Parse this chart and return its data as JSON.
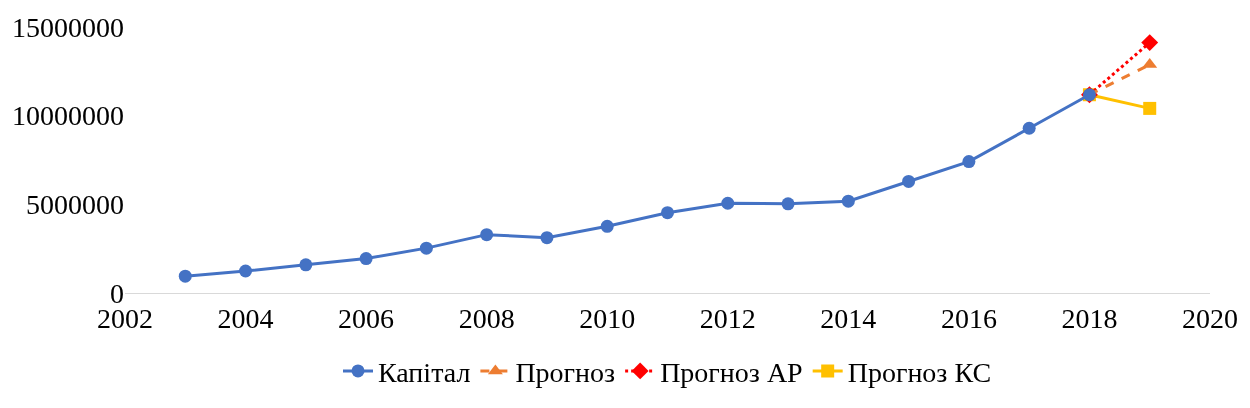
{
  "chart_data": {
    "type": "line",
    "xlim": [
      2002,
      2020
    ],
    "xticks": [
      2002,
      2004,
      2006,
      2008,
      2010,
      2012,
      2014,
      2016,
      2018,
      2020
    ],
    "ylim": [
      0,
      15000000
    ],
    "yticks": [
      0,
      5000000,
      10000000,
      15000000
    ],
    "grid": false,
    "legend": "bottom",
    "series": [
      {
        "name": "Капітал",
        "color": "#4472c4",
        "marker": "circle",
        "line_style": "solid",
        "x": [
          2003,
          2004,
          2005,
          2006,
          2007,
          2008,
          2009,
          2010,
          2011,
          2012,
          2013,
          2014,
          2015,
          2016,
          2017,
          2018
        ],
        "values": [
          950000,
          1240000,
          1590000,
          1940000,
          2530000,
          3290000,
          3120000,
          3760000,
          4530000,
          5060000,
          5030000,
          5180000,
          6290000,
          7410000,
          9290000,
          11180000
        ]
      },
      {
        "name": "Прогноз",
        "color": "#ed7d31",
        "marker": "triangle",
        "line_style": "dashed",
        "x": [
          2018,
          2019
        ],
        "values": [
          11180000,
          12880000
        ]
      },
      {
        "name": "Прогноз АР",
        "color": "#ff0000",
        "marker": "diamond",
        "line_style": "dotted",
        "x": [
          2018,
          2019
        ],
        "values": [
          11180000,
          14120000
        ]
      },
      {
        "name": "Прогноз КС",
        "color": "#ffc000",
        "marker": "square",
        "line_style": "solid",
        "x": [
          2018,
          2019
        ],
        "values": [
          11180000,
          10410000
        ]
      }
    ]
  }
}
